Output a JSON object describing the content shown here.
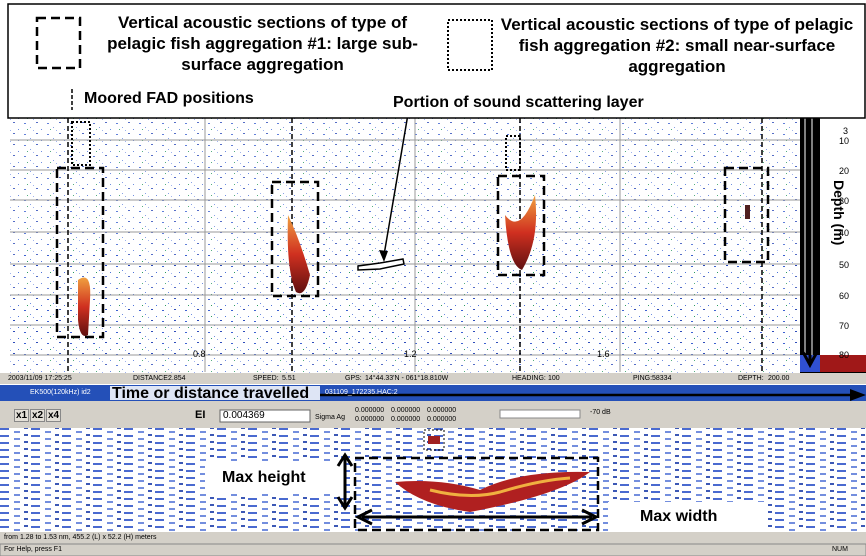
{
  "legend": {
    "type1": "Vertical acoustic sections of type of pelagic fish aggregation #1: large sub-surface aggregation",
    "type2": "Vertical acoustic sections of type of pelagic fish aggregation #2: small near-surface aggregation",
    "fad": "Moored FAD positions"
  },
  "annotations": {
    "scattering_layer": "Portion of sound scattering layer",
    "time_distance": "Time or distance travelled",
    "max_height": "Max height",
    "max_width": "Max width"
  },
  "echogram": {
    "depth_ticks": [
      "3",
      "10",
      "20",
      "30",
      "40",
      "50",
      "60",
      "70",
      "80"
    ],
    "depth_label": "Depth (m)",
    "distance_ticks": [
      "0.8",
      "1.2",
      "1.6"
    ]
  },
  "status_bar": {
    "datetime": "2003/11/09 17:25:25",
    "distance_label": "DISTANCE:",
    "distance": "2.854",
    "speed_label": "SPEED:",
    "speed": "5.51",
    "gps_label": "GPS:",
    "gps": "14°44.33'N - 061°18.810W",
    "heading_label": "HEADING:",
    "heading": "100",
    "ping_label": "PING:",
    "ping": "58334",
    "depth_label": "DEPTH:",
    "depth": "200.00"
  },
  "window": {
    "title": "EK500(120kHz) id2",
    "file": "031109_172235.HAC:2",
    "toolbar": {
      "zoom": [
        "x1",
        "x2",
        "x4"
      ],
      "ei": "EI",
      "ei_value": "0.004369",
      "sigma": "Sigma Ag",
      "readouts": [
        "0.000000",
        "0.000000",
        "0.000000",
        "0.000000",
        "0.000000",
        "0.000000"
      ],
      "threshold": "-70 dB"
    },
    "selection": "from 1.28 to 1.53 nm, 455.2 (L) x 52.2 (H) meters"
  },
  "app_status": {
    "help": "For Help, press F1",
    "num": "NUM"
  }
}
